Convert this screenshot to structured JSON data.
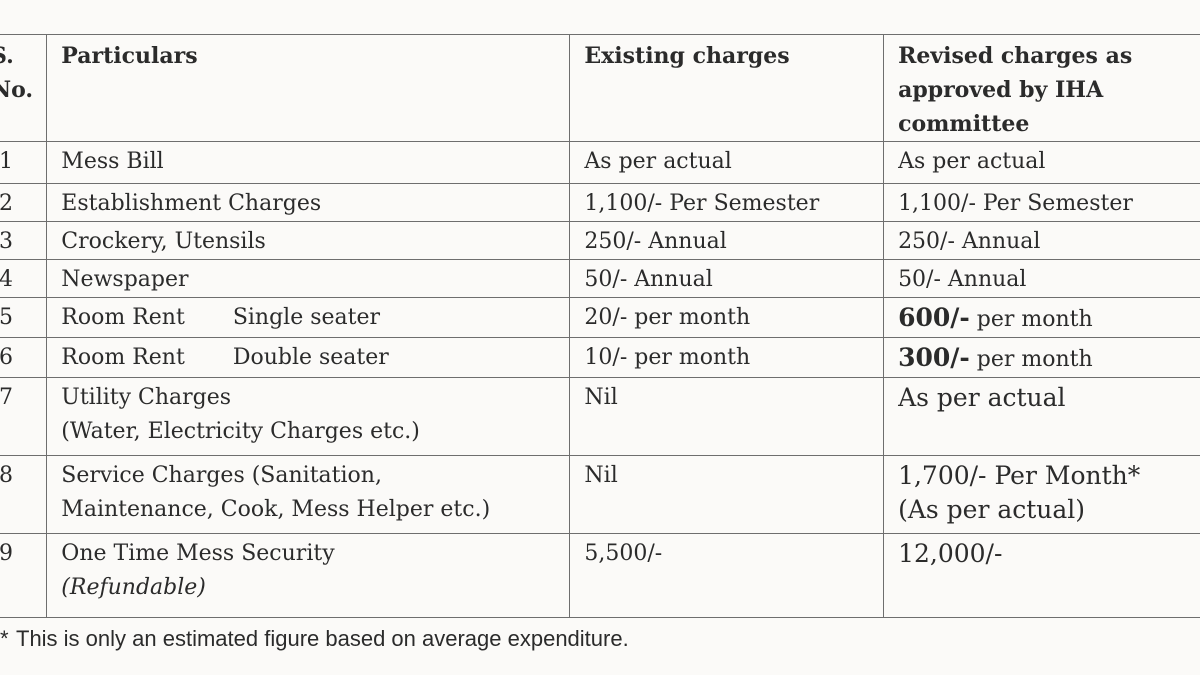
{
  "table": {
    "headers": {
      "sno": "S. No.",
      "particulars": "Particulars",
      "existing": "Existing charges",
      "revised": "Revised charges as approved by IHA committee"
    },
    "rows": [
      {
        "sno": "1",
        "particulars": "Mess Bill",
        "existing": "As per actual",
        "revised": "As per actual"
      },
      {
        "sno": "2",
        "particulars": "Establishment Charges",
        "existing": "1,100/- Per Semester",
        "revised": "1,100/- Per Semester"
      },
      {
        "sno": "3",
        "particulars": "Crockery, Utensils",
        "existing": "250/- Annual",
        "revised": "250/- Annual"
      },
      {
        "sno": "4",
        "particulars": "Newspaper",
        "existing": "50/- Annual",
        "revised": "50/- Annual"
      },
      {
        "sno": "5",
        "particulars": "Room Rent",
        "particulars_sub": "Single seater",
        "existing": "20/- per month",
        "revised_amount": "600/-",
        "revised_unit": "per month"
      },
      {
        "sno": "6",
        "particulars": "Room Rent",
        "particulars_sub": "Double seater",
        "existing": "10/- per month",
        "revised_amount": "300/-",
        "revised_unit": "per month"
      },
      {
        "sno": "7",
        "particulars": "Utility Charges",
        "particulars_sub": "(Water, Electricity Charges etc.)",
        "existing": "Nil",
        "revised": "As per actual"
      },
      {
        "sno": "8",
        "particulars": "Service Charges (Sanitation,",
        "particulars_sub": "Maintenance, Cook, Mess Helper etc.)",
        "existing": "Nil",
        "revised": "1,700/- Per Month*",
        "revised_sub": "(As per actual)"
      },
      {
        "sno": "9",
        "particulars": "One Time Mess Security",
        "particulars_sub": "(Refundable)",
        "existing": "5,500/-",
        "revised": "12,000/-"
      }
    ]
  },
  "footnote": {
    "marker": "*",
    "text": "This is only an estimated figure based on average expenditure."
  }
}
